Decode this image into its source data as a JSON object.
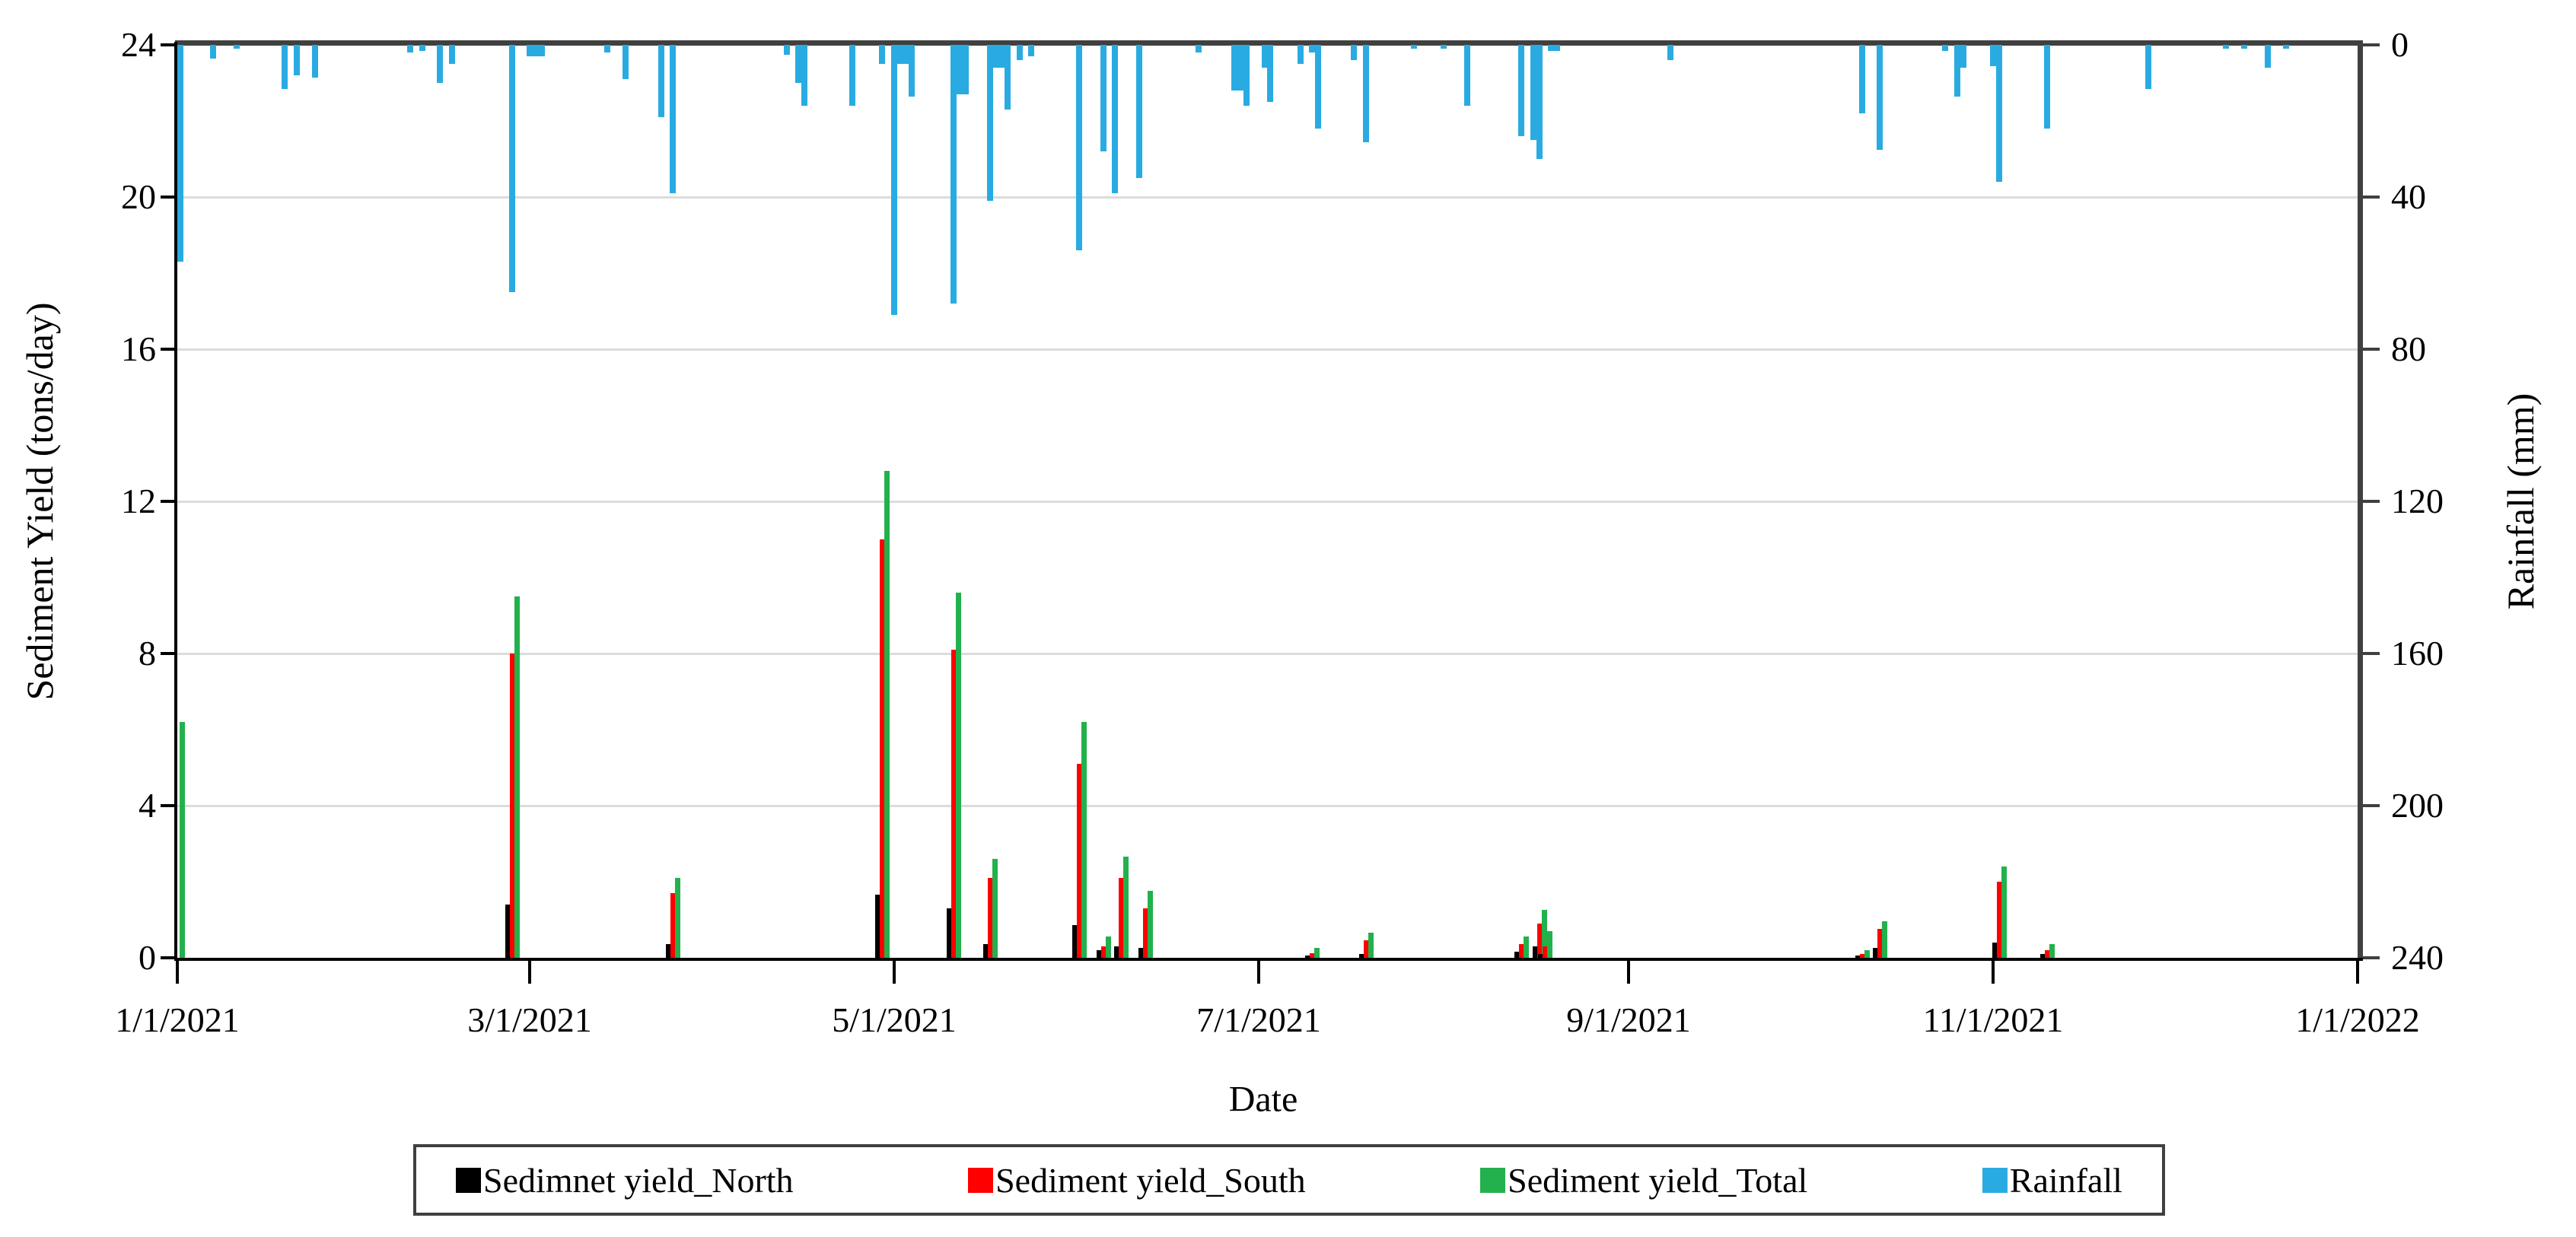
{
  "chart_data": {
    "type": "bar",
    "title": "",
    "xlabel": "Date",
    "ylabel_left": "Sediment Yield  (tons/day)",
    "ylabel_right": "Rainfall (mm)",
    "x_tick_labels": [
      "1/1/2021",
      "3/1/2021",
      "5/1/2021",
      "7/1/2021",
      "9/1/2021",
      "11/1/2021",
      "1/1/2022"
    ],
    "left_axis_ticks": [
      "24",
      "20",
      "16",
      "12",
      "8",
      "4",
      "0"
    ],
    "right_axis_ticks": [
      "0",
      "40",
      "80",
      "120",
      "160",
      "200",
      "240"
    ],
    "ylim_left": [
      0,
      24
    ],
    "ylim_right": [
      0,
      240
    ],
    "right_axis_inverted": true,
    "grid": "horizontal-light",
    "legend_position": "bottom",
    "series": [
      {
        "name": "Sedimnet yield_North",
        "color": "#000000",
        "axis": "left",
        "key": "north"
      },
      {
        "name": "Sediment yield_South",
        "color": "#ff0000",
        "axis": "left",
        "key": "south"
      },
      {
        "name": "Sediment yield_Total",
        "color": "#22b14c",
        "axis": "left",
        "key": "total"
      },
      {
        "name": "Rainfall",
        "color": "#29abe2",
        "axis": "right",
        "key": "mm"
      }
    ],
    "sediment_events": [
      {
        "date": "1/1/2021",
        "north": 0,
        "south": 0,
        "total": 6.2
      },
      {
        "date": "2/26/2021",
        "north": 1.4,
        "south": 8.0,
        "total": 9.5
      },
      {
        "date": "3/25/2021",
        "north": 0.35,
        "south": 1.7,
        "total": 2.1
      },
      {
        "date": "4/29/2021",
        "north": 1.65,
        "south": 11.0,
        "total": 12.8
      },
      {
        "date": "5/11/2021",
        "north": 1.3,
        "south": 8.1,
        "total": 9.6
      },
      {
        "date": "5/17/2021",
        "north": 0.35,
        "south": 2.1,
        "total": 2.6
      },
      {
        "date": "6/1/2021",
        "north": 0.85,
        "south": 5.1,
        "total": 6.2
      },
      {
        "date": "6/5/2021",
        "north": 0.2,
        "south": 0.3,
        "total": 0.55
      },
      {
        "date": "6/8/2021",
        "north": 0.3,
        "south": 2.1,
        "total": 2.65
      },
      {
        "date": "6/12/2021",
        "north": 0.25,
        "south": 1.3,
        "total": 1.75
      },
      {
        "date": "7/10/2021",
        "north": 0.05,
        "south": 0.12,
        "total": 0.25
      },
      {
        "date": "7/19/2021",
        "north": 0.1,
        "south": 0.45,
        "total": 0.65
      },
      {
        "date": "8/14/2021",
        "north": 0.15,
        "south": 0.35,
        "total": 0.55
      },
      {
        "date": "8/17/2021",
        "north": 0.3,
        "south": 0.9,
        "total": 1.25
      },
      {
        "date": "8/18/2021",
        "north": 0.1,
        "south": 0.3,
        "total": 0.7
      },
      {
        "date": "10/10/2021",
        "north": 0.05,
        "south": 0.1,
        "total": 0.2
      },
      {
        "date": "10/13/2021",
        "north": 0.25,
        "south": 0.75,
        "total": 0.95
      },
      {
        "date": "11/2/2021",
        "north": 0.4,
        "south": 2.0,
        "total": 2.4
      },
      {
        "date": "11/10/2021",
        "north": 0.1,
        "south": 0.2,
        "total": 0.35
      }
    ],
    "rainfall_events": [
      {
        "date": "1/1/2021",
        "mm": 57
      },
      {
        "date": "1/7/2021",
        "mm": 3.5
      },
      {
        "date": "1/11/2021",
        "mm": 1
      },
      {
        "date": "1/19/2021",
        "mm": 11.5
      },
      {
        "date": "1/21/2021",
        "mm": 8
      },
      {
        "date": "1/24/2021",
        "mm": 8.5
      },
      {
        "date": "2/9/2021",
        "mm": 2
      },
      {
        "date": "2/11/2021",
        "mm": 1.5
      },
      {
        "date": "2/14/2021",
        "mm": 10
      },
      {
        "date": "2/16/2021",
        "mm": 5
      },
      {
        "date": "2/26/2021",
        "mm": 65
      },
      {
        "date": "3/1/2021",
        "mm": 3,
        "days": 3
      },
      {
        "date": "3/14/2021",
        "mm": 2
      },
      {
        "date": "3/17/2021",
        "mm": 9
      },
      {
        "date": "3/23/2021",
        "mm": 19
      },
      {
        "date": "3/25/2021",
        "mm": 39
      },
      {
        "date": "4/13/2021",
        "mm": 2.5
      },
      {
        "date": "4/15/2021",
        "mm": 10
      },
      {
        "date": "4/16/2021",
        "mm": 16
      },
      {
        "date": "4/24/2021",
        "mm": 16
      },
      {
        "date": "4/29/2021",
        "mm": 5
      },
      {
        "date": "5/1/2021",
        "mm": 71
      },
      {
        "date": "5/2/2021",
        "mm": 5,
        "days": 2
      },
      {
        "date": "5/4/2021",
        "mm": 13.5
      },
      {
        "date": "5/11/2021",
        "mm": 68
      },
      {
        "date": "5/12/2021",
        "mm": 13,
        "days": 2
      },
      {
        "date": "5/17/2021",
        "mm": 41
      },
      {
        "date": "5/18/2021",
        "mm": 6,
        "days": 2
      },
      {
        "date": "5/20/2021",
        "mm": 17
      },
      {
        "date": "5/22/2021",
        "mm": 4
      },
      {
        "date": "5/24/2021",
        "mm": 3
      },
      {
        "date": "6/1/2021",
        "mm": 54
      },
      {
        "date": "6/5/2021",
        "mm": 28
      },
      {
        "date": "6/7/2021",
        "mm": 39
      },
      {
        "date": "6/11/2021",
        "mm": 35
      },
      {
        "date": "6/21/2021",
        "mm": 2
      },
      {
        "date": "6/27/2021",
        "mm": 12,
        "days": 2
      },
      {
        "date": "6/29/2021",
        "mm": 16
      },
      {
        "date": "7/2/2021",
        "mm": 6
      },
      {
        "date": "7/3/2021",
        "mm": 15
      },
      {
        "date": "7/8/2021",
        "mm": 5
      },
      {
        "date": "7/10/2021",
        "mm": 2
      },
      {
        "date": "7/11/2021",
        "mm": 22
      },
      {
        "date": "7/17/2021",
        "mm": 4
      },
      {
        "date": "7/19/2021",
        "mm": 25.5
      },
      {
        "date": "7/27/2021",
        "mm": 1
      },
      {
        "date": "8/1/2021",
        "mm": 1
      },
      {
        "date": "8/5/2021",
        "mm": 16
      },
      {
        "date": "8/14/2021",
        "mm": 24
      },
      {
        "date": "8/16/2021",
        "mm": 25,
        "days": 2
      },
      {
        "date": "8/17/2021",
        "mm": 30
      },
      {
        "date": "8/19/2021",
        "mm": 1.5,
        "days": 2
      },
      {
        "date": "9/8/2021",
        "mm": 4
      },
      {
        "date": "10/10/2021",
        "mm": 18
      },
      {
        "date": "10/13/2021",
        "mm": 27.5
      },
      {
        "date": "10/24/2021",
        "mm": 1.5
      },
      {
        "date": "10/26/2021",
        "mm": 13.5
      },
      {
        "date": "10/27/2021",
        "mm": 6
      },
      {
        "date": "11/1/2021",
        "mm": 5.5
      },
      {
        "date": "11/2/2021",
        "mm": 36
      },
      {
        "date": "11/10/2021",
        "mm": 22
      },
      {
        "date": "11/27/2021",
        "mm": 11.5
      },
      {
        "date": "12/10/2021",
        "mm": 1
      },
      {
        "date": "12/13/2021",
        "mm": 1
      },
      {
        "date": "12/17/2021",
        "mm": 6
      },
      {
        "date": "12/20/2021",
        "mm": 1
      }
    ]
  }
}
